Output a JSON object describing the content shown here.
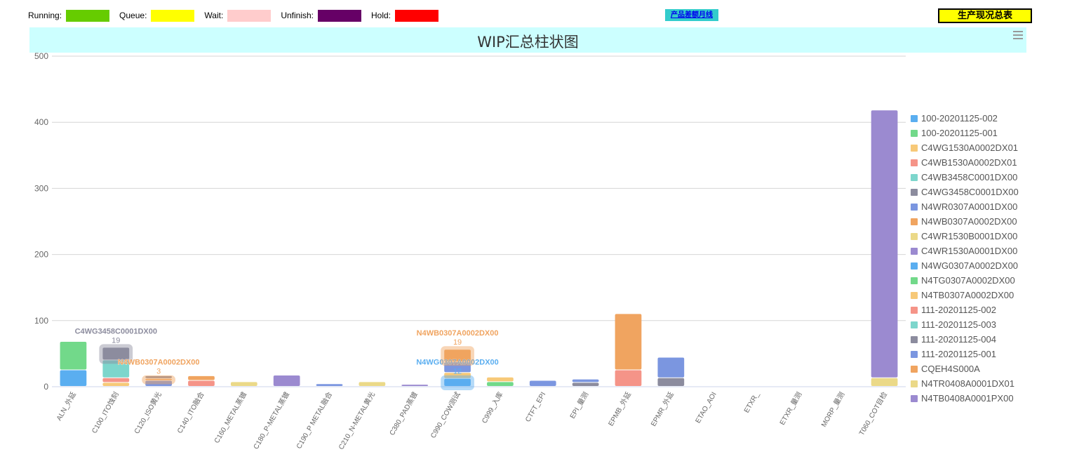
{
  "status_legend": [
    {
      "label": "Running:",
      "color": "#66cc00"
    },
    {
      "label": "Queue:",
      "color": "#ffff00"
    },
    {
      "label": "Wait:",
      "color": "#ffcccc"
    },
    {
      "label": "Unfinish:",
      "color": "#660066"
    },
    {
      "label": "Hold:",
      "color": "#ff0000"
    }
  ],
  "nav": {
    "monthly_link": "产品差额月线",
    "summary_button": "生产现况总表"
  },
  "chart_data": {
    "type": "bar",
    "stacked": true,
    "title": "WIP汇总柱状图",
    "ylim": [
      0,
      500
    ],
    "yticks": [
      0,
      100,
      200,
      300,
      400,
      500
    ],
    "grid": true,
    "legend_position": "right",
    "categories": [
      "ALN_外延",
      "C100_ITO蚀刻",
      "C120_ISO黄光",
      "C140_ITO融合",
      "C160_METAL蒸镀",
      "C180_P-METAL蒸镀",
      "C190_P METAL融合",
      "C210_N-METAL黄光",
      "C380_PAD蒸镀",
      "C990_COW测试",
      "C999_入库",
      "CTFT_EPI",
      "EPI_量测",
      "EPMB_外延",
      "EPMR_外延",
      "ETAO_AOI",
      "ETXR_",
      "ETXR_量测",
      "MORP_量测",
      "T060_COT目检"
    ],
    "series": [
      {
        "name": "100-20201125-002",
        "color": "#5aaef0",
        "values": [
          25,
          0,
          0,
          0,
          0,
          0,
          0,
          0,
          0,
          0,
          0,
          0,
          0,
          0,
          0,
          0,
          0,
          0,
          0,
          0
        ]
      },
      {
        "name": "100-20201125-001",
        "color": "#72d98a",
        "values": [
          43,
          0,
          0,
          0,
          0,
          0,
          0,
          0,
          0,
          0,
          0,
          0,
          0,
          0,
          0,
          0,
          0,
          0,
          0,
          0
        ]
      },
      {
        "name": "C4WG1530A0002DX01",
        "color": "#f7c978",
        "values": [
          0,
          6,
          0,
          0,
          0,
          0,
          0,
          0,
          0,
          0,
          0,
          0,
          0,
          0,
          0,
          0,
          0,
          0,
          0,
          0
        ]
      },
      {
        "name": "C4WB1530A0002DX01",
        "color": "#f59488",
        "values": [
          0,
          7,
          0,
          0,
          0,
          0,
          0,
          0,
          0,
          0,
          0,
          0,
          0,
          0,
          0,
          0,
          0,
          0,
          0,
          0
        ]
      },
      {
        "name": "C4WB3458C0001DX00",
        "color": "#7dd6cc",
        "values": [
          0,
          27,
          0,
          0,
          0,
          0,
          0,
          0,
          0,
          0,
          0,
          0,
          0,
          0,
          0,
          0,
          0,
          0,
          0,
          0
        ]
      },
      {
        "name": "C4WG3458C0001DX00",
        "color": "#8c8c9e",
        "values": [
          0,
          19,
          0,
          0,
          0,
          0,
          0,
          0,
          0,
          0,
          0,
          0,
          0,
          0,
          0,
          0,
          0,
          0,
          0,
          0
        ]
      },
      {
        "name": "N4WR0307A0001DX00",
        "color": "#7b96e0",
        "values": [
          0,
          0,
          9,
          0,
          0,
          0,
          0,
          0,
          0,
          0,
          0,
          0,
          0,
          0,
          0,
          0,
          0,
          0,
          0,
          0
        ]
      },
      {
        "name": "N4WB0307A0002DX00",
        "color": "#f0a460",
        "values": [
          0,
          0,
          3,
          0,
          0,
          0,
          0,
          0,
          0,
          0,
          0,
          0,
          0,
          0,
          0,
          0,
          0,
          0,
          0,
          0
        ]
      },
      {
        "name": "C4WR1530B0001DX00",
        "color": "#ebd988",
        "values": [
          0,
          0,
          0,
          0,
          0,
          0,
          0,
          0,
          0,
          0,
          0,
          0,
          0,
          0,
          0,
          0,
          0,
          0,
          0,
          0
        ]
      },
      {
        "name": "C4WR1530A0001DX00",
        "color": "#9b8ad0",
        "values": [
          0,
          0,
          0,
          0,
          0,
          0,
          0,
          0,
          0,
          0,
          0,
          0,
          0,
          0,
          0,
          0,
          0,
          0,
          0,
          0
        ]
      },
      {
        "name": "N4WG0307A0002DX00",
        "color": "#5aaef0",
        "values": [
          0,
          0,
          0,
          0,
          0,
          0,
          0,
          0,
          0,
          12,
          0,
          0,
          0,
          0,
          0,
          0,
          0,
          0,
          0,
          0
        ]
      },
      {
        "name": "N4TG0307A0002DX00",
        "color": "#72d98a",
        "values": [
          0,
          0,
          0,
          0,
          0,
          0,
          0,
          0,
          0,
          0,
          7,
          0,
          0,
          0,
          0,
          0,
          0,
          0,
          0,
          0
        ]
      },
      {
        "name": "N4TB0307A0002DX00",
        "color": "#f7c978",
        "values": [
          0,
          0,
          0,
          0,
          0,
          0,
          0,
          0,
          0,
          9,
          7,
          0,
          0,
          0,
          0,
          0,
          0,
          0,
          0,
          0
        ]
      },
      {
        "name": "111-20201125-002",
        "color": "#f59488",
        "values": [
          0,
          0,
          0,
          9,
          0,
          0,
          0,
          0,
          0,
          0,
          0,
          0,
          0,
          25,
          0,
          0,
          0,
          0,
          0,
          0
        ]
      },
      {
        "name": "111-20201125-003",
        "color": "#7dd6cc",
        "values": [
          0,
          0,
          0,
          0,
          0,
          0,
          0,
          0,
          0,
          0,
          0,
          0,
          0,
          0,
          0,
          0,
          0,
          0,
          0,
          0
        ]
      },
      {
        "name": "111-20201125-004",
        "color": "#8c8c9e",
        "values": [
          0,
          0,
          4,
          0,
          0,
          0,
          0,
          0,
          0,
          0,
          0,
          0,
          6,
          0,
          13,
          0,
          0,
          0,
          0,
          0
        ]
      },
      {
        "name": "111-20201125-001",
        "color": "#7b96e0",
        "values": [
          0,
          0,
          0,
          0,
          0,
          0,
          4,
          0,
          0,
          16,
          0,
          9,
          5,
          0,
          31,
          0,
          0,
          0,
          0,
          0
        ]
      },
      {
        "name": "CQEH4S000A",
        "color": "#f0a460",
        "values": [
          0,
          0,
          0,
          7,
          0,
          0,
          0,
          0,
          0,
          19,
          0,
          0,
          0,
          85,
          0,
          0,
          0,
          0,
          0,
          0
        ]
      },
      {
        "name": "N4TR0408A0001DX01",
        "color": "#ebd988",
        "values": [
          0,
          0,
          0,
          0,
          7,
          0,
          0,
          7,
          0,
          0,
          0,
          0,
          0,
          0,
          0,
          0,
          0,
          0,
          0,
          13
        ]
      },
      {
        "name": "N4TB0408A0001PX00",
        "color": "#9b8ad0",
        "values": [
          0,
          0,
          0,
          0,
          0,
          17,
          0,
          0,
          3,
          0,
          0,
          0,
          0,
          0,
          0,
          0,
          0,
          0,
          0,
          405
        ]
      }
    ],
    "extra_segments_note": "",
    "highlights": [
      {
        "category": "C100_ITO蚀刻",
        "series": "C4WG3458C0001DX00",
        "label": "C4WG3458C0001DX00",
        "value": "19"
      },
      {
        "category": "C120_ISO黄光",
        "series": "N4WB0307A0002DX00",
        "label": "N4WB0307A0002DX00",
        "value": "3"
      },
      {
        "category": "C990_COW测试",
        "series": "N4WG0307A0002DX00",
        "label": "N4WG0307A0002DX00",
        "value": "12"
      },
      {
        "category": "C990_COW测试",
        "series": "CQEH4S000A",
        "label": "N4WB0307A0002DX00",
        "value": "19"
      }
    ]
  }
}
